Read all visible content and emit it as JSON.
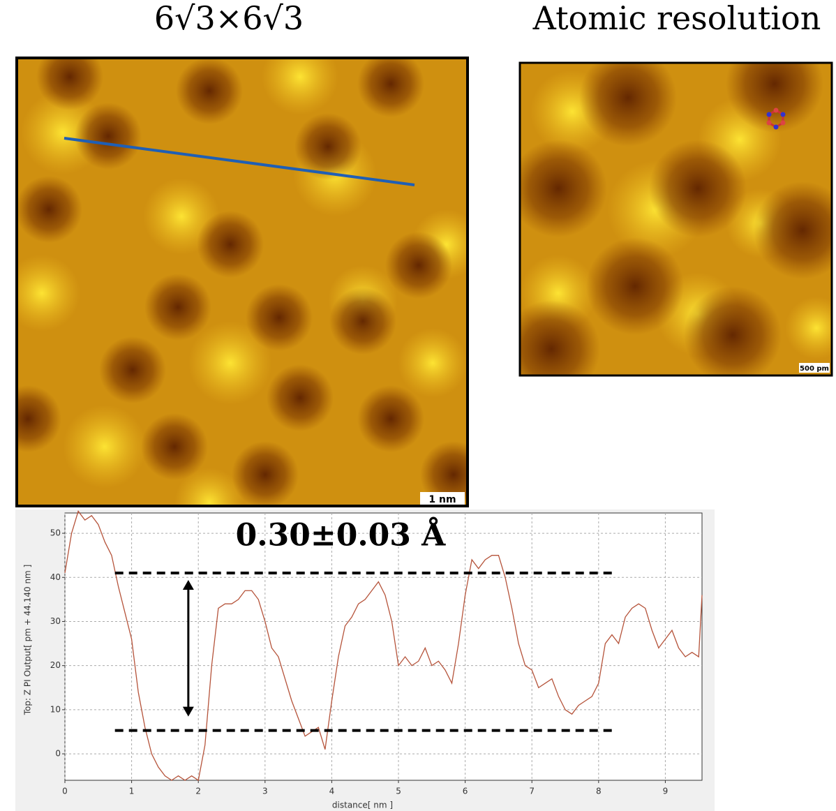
{
  "panels": [
    {
      "title": "6√3×6√3",
      "scale_bar": "1 nm"
    },
    {
      "title": "Atomic resolution",
      "scale_bar": "500 pm"
    }
  ],
  "chart_data": {
    "type": "line",
    "annotation": "0.30±0.03 Å",
    "x_label": "distance[ nm ]",
    "y_label": "Top: Z PI Output[ pm + 44.140 nm ]",
    "color": "#b5533a",
    "x": [
      0,
      0.1,
      0.2,
      0.3,
      0.4,
      0.5,
      0.6,
      0.7,
      0.8,
      0.9,
      1.0,
      1.1,
      1.2,
      1.3,
      1.4,
      1.5,
      1.6,
      1.7,
      1.8,
      1.9,
      2.0,
      2.1,
      2.2,
      2.3,
      2.4,
      2.5,
      2.6,
      2.7,
      2.8,
      2.9,
      3.0,
      3.1,
      3.2,
      3.3,
      3.4,
      3.5,
      3.6,
      3.7,
      3.8,
      3.9,
      4.0,
      4.1,
      4.2,
      4.3,
      4.4,
      4.5,
      4.6,
      4.7,
      4.8,
      4.9,
      5.0,
      5.1,
      5.2,
      5.3,
      5.4,
      5.5,
      5.6,
      5.7,
      5.8,
      5.9,
      6.0,
      6.1,
      6.2,
      6.3,
      6.4,
      6.5,
      6.6,
      6.7,
      6.8,
      6.9,
      7.0,
      7.1,
      7.2,
      7.3,
      7.4,
      7.5,
      7.6,
      7.7,
      7.8,
      7.9,
      8.0,
      8.1,
      8.2,
      8.3,
      8.4,
      8.5,
      8.6,
      8.7,
      8.8,
      8.9,
      9.0,
      9.1,
      9.2,
      9.3,
      9.4,
      9.5,
      9.55
    ],
    "values": [
      41,
      50,
      55,
      53,
      54,
      52,
      48,
      45,
      38,
      32,
      26,
      14,
      6,
      0,
      -3,
      -5,
      -6,
      -5,
      -6,
      -5,
      -6,
      2,
      20,
      33,
      34,
      34,
      35,
      37,
      37,
      35,
      30,
      24,
      22,
      17,
      12,
      8,
      4,
      5,
      6,
      1,
      12,
      22,
      29,
      31,
      34,
      35,
      37,
      39,
      36,
      30,
      20,
      22,
      20,
      21,
      24,
      20,
      21,
      19,
      16,
      25,
      36,
      44,
      42,
      44,
      45,
      45,
      40,
      33,
      25,
      20,
      19,
      15,
      16,
      17,
      13,
      10,
      9,
      11,
      12,
      13,
      16,
      25,
      27,
      25,
      31,
      33,
      34,
      33,
      28,
      24,
      26,
      28,
      24,
      22,
      23,
      22,
      36
    ],
    "hlines": [
      41,
      5.3
    ],
    "xlim": [
      0,
      9.55
    ],
    "ylim": [
      -6,
      54.6
    ],
    "xticks": [
      0,
      1,
      2,
      3,
      4,
      5,
      6,
      7,
      8,
      9
    ],
    "yticks": [
      0,
      10,
      20,
      30,
      40,
      50
    ],
    "grid": true
  }
}
